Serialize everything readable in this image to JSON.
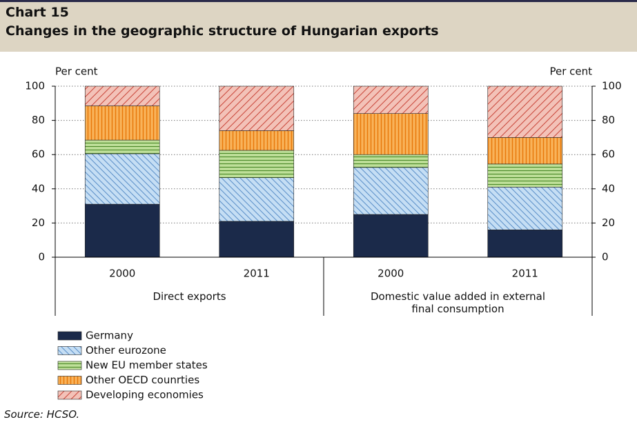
{
  "chart_data": {
    "type": "bar",
    "stacked": true,
    "label": "Chart 15",
    "title": "Changes in the geographic structure of Hungarian exports",
    "y_label": "Per cent",
    "y2_label": "Per cent",
    "categories": [
      "2000",
      "2011",
      "2000",
      "2011"
    ],
    "groups": [
      "Direct exports",
      "Domestic value added in external final consumption"
    ],
    "series": [
      {
        "name": "Germany",
        "color": "#1b2a4a",
        "values": [
          31,
          21,
          25,
          16
        ]
      },
      {
        "name": "Other eurozone",
        "color": "#c5def4",
        "values": [
          29.5,
          25.5,
          27.5,
          25
        ]
      },
      {
        "name": "New EU member states",
        "color": "#bfe09a",
        "values": [
          8,
          16,
          7.5,
          13.5
        ]
      },
      {
        "name": "Other OECD counrties",
        "color": "#f9b35a",
        "values": [
          20,
          11.5,
          24,
          15.5
        ]
      },
      {
        "name": "Developing economies",
        "color": "#f3c2b8",
        "values": [
          11.5,
          26,
          16,
          30
        ]
      }
    ],
    "ylim": [
      0,
      100
    ],
    "yticks": [
      0,
      20,
      40,
      60,
      80,
      100
    ],
    "y2lim": [
      0,
      100
    ],
    "y2ticks": [
      0,
      20,
      40,
      60,
      80,
      100
    ],
    "grid": true,
    "source": "Source: HCSO."
  }
}
